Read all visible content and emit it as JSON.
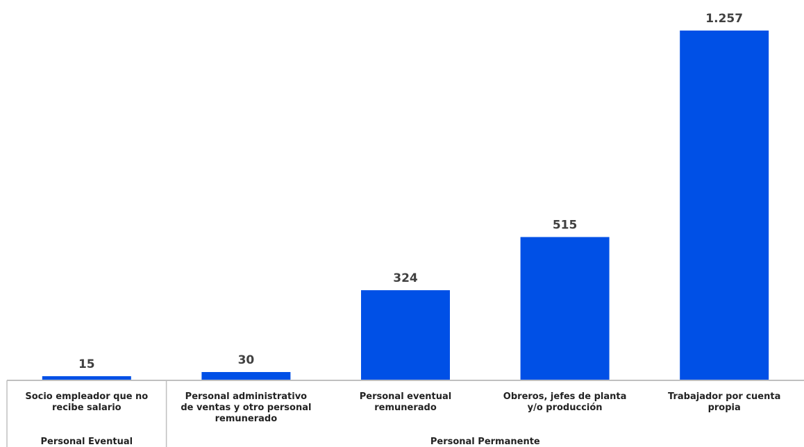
{
  "chart_data": {
    "type": "bar",
    "categories": [
      [
        "Socio empleador que no",
        "recibe salario"
      ],
      [
        "Personal administrativo",
        "de ventas y otro personal",
        "remunerado"
      ],
      [
        "Personal eventual",
        "remunerado"
      ],
      [
        "Obreros, jefes de planta",
        "y/o producción"
      ],
      [
        "Trabajador por cuenta",
        "propia"
      ]
    ],
    "values": [
      15,
      30,
      324,
      515,
      1257
    ],
    "data_labels": [
      "15",
      "30",
      "324",
      "515",
      "1.257"
    ],
    "groups": [
      {
        "label": "Personal Eventual",
        "span": [
          0,
          0
        ]
      },
      {
        "label": "Personal Permanente",
        "span": [
          1,
          4
        ]
      }
    ],
    "title": "",
    "xlabel": "",
    "ylabel": "",
    "ylim": [
      0,
      1257
    ],
    "grid": false,
    "legend": "none",
    "bar_color": "#0050e6",
    "axis_color": "#bfbfbf",
    "label_color": "#404040"
  }
}
